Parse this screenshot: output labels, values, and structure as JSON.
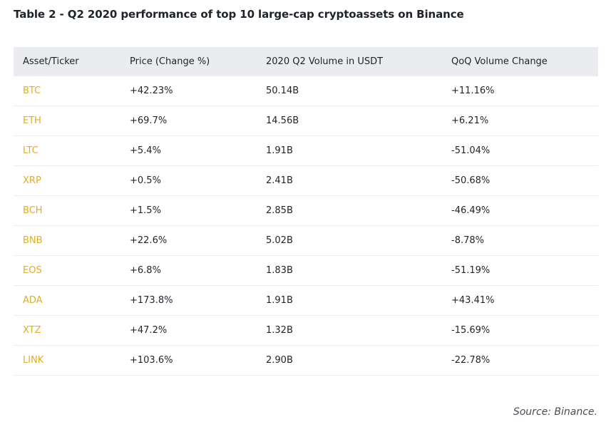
{
  "title": "Table 2 - Q2 2020 performance of top 10 large-cap cryptoassets on Binance",
  "table": {
    "headers": [
      "Asset/Ticker",
      "Price (Change %)",
      "2020 Q2 Volume in USDT",
      "QoQ Volume Change"
    ],
    "rows": [
      [
        "BTC",
        "+42.23%",
        "50.14B",
        "+11.16%"
      ],
      [
        "ETH",
        "+69.7%",
        "14.56B",
        "+6.21%"
      ],
      [
        "LTC",
        "+5.4%",
        "1.91B",
        "-51.04%"
      ],
      [
        "XRP",
        "+0.5%",
        "2.41B",
        "-50.68%"
      ],
      [
        "BCH",
        "+1.5%",
        "2.85B",
        "-46.49%"
      ],
      [
        "BNB",
        "+22.6%",
        "5.02B",
        "-8.78%"
      ],
      [
        "EOS",
        "+6.8%",
        "1.83B",
        "-51.19%"
      ],
      [
        "ADA",
        "+173.8%",
        "1.91B",
        "+43.41%"
      ],
      [
        "XTZ",
        "+47.2%",
        "1.32B",
        "-15.69%"
      ],
      [
        "LINK",
        "+103.6%",
        "2.90B",
        "-22.78%"
      ]
    ]
  },
  "source": "Source: Binance.",
  "colors": {
    "ticker": "#e0ad28",
    "header_bg": "#eaecef",
    "text": "#1e2329"
  }
}
